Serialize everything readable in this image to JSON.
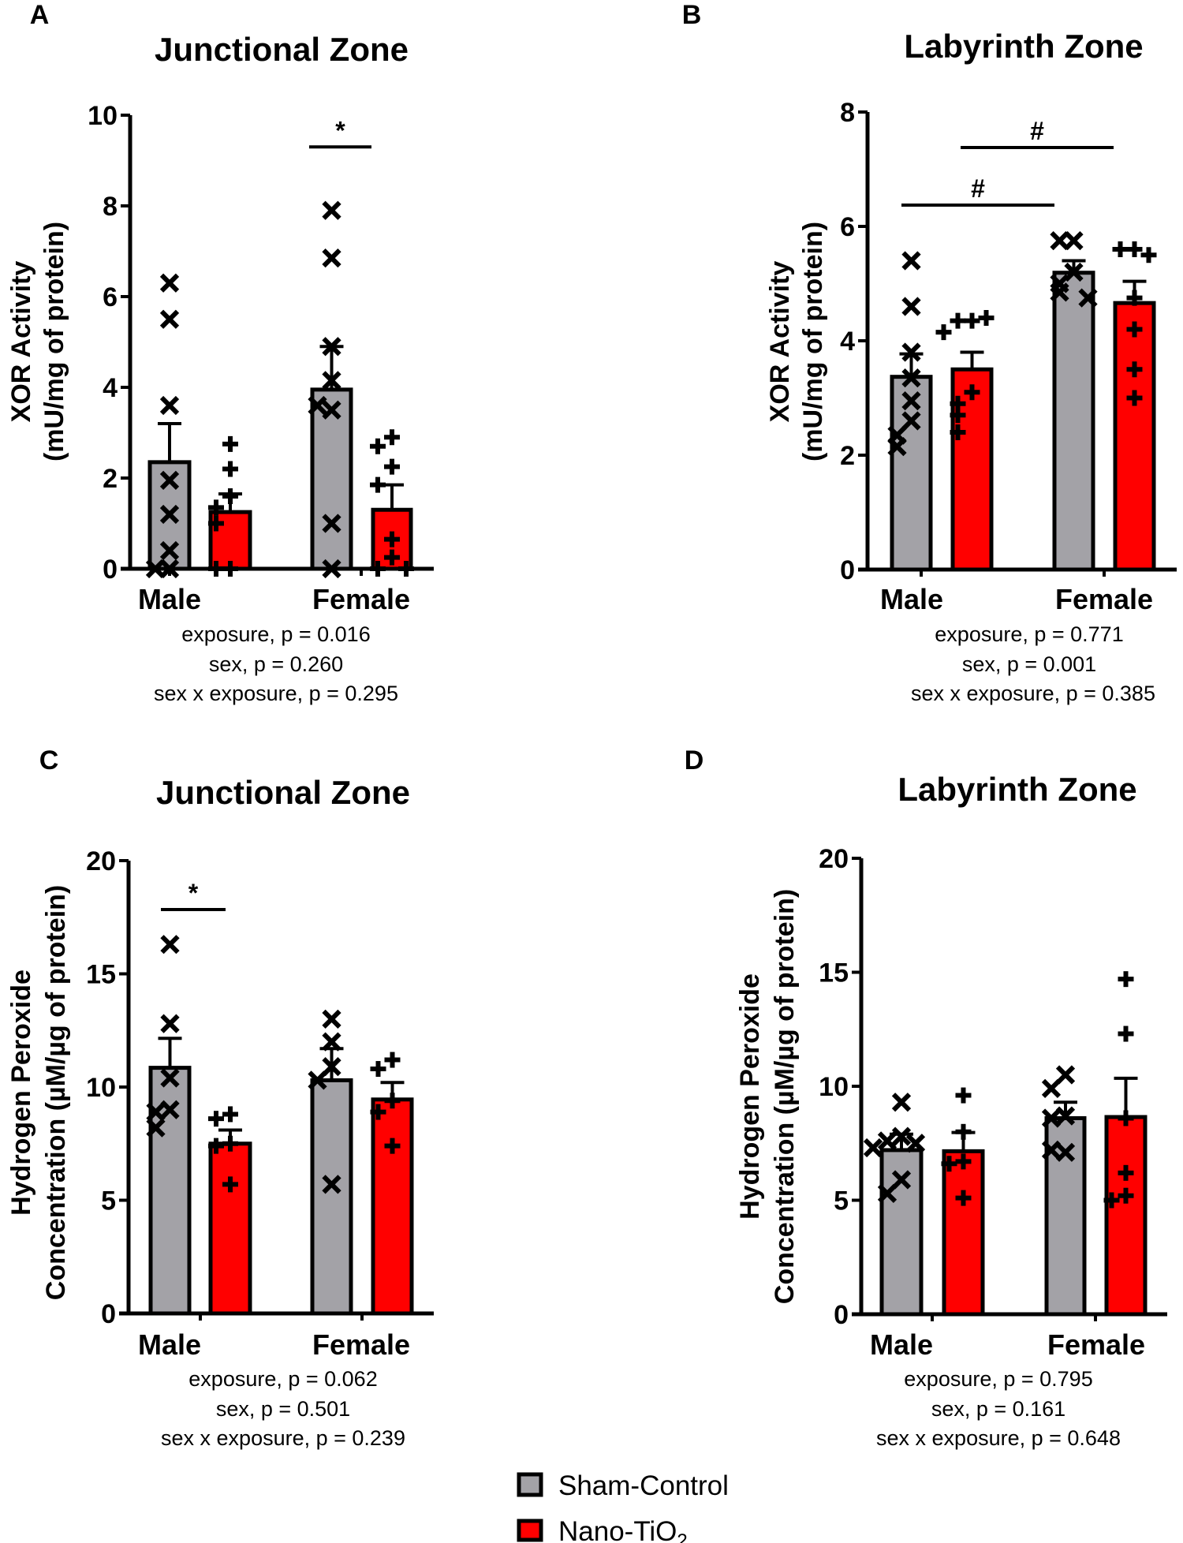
{
  "legend": {
    "items": [
      {
        "label": "Sham-Control",
        "color": "#a3a2a7"
      },
      {
        "label": "Nano-TiO",
        "subscript": "2",
        "color": "#ff0000"
      }
    ]
  },
  "chart_data": [
    {
      "panel": "A",
      "type": "bar",
      "title": "Junctional Zone",
      "ylabel": [
        "XOR Activity",
        "(mU/mg of protein)"
      ],
      "ylim": [
        0,
        10
      ],
      "yticks": [
        0,
        2,
        4,
        6,
        8,
        10
      ],
      "categories": [
        "Male",
        "Female"
      ],
      "series": [
        {
          "name": "Sham-Control",
          "marker": "x",
          "color": "#a3a2a7",
          "values": [
            2.35,
            3.95
          ],
          "sem_upper": [
            3.2,
            4.9
          ],
          "points": [
            [
              6.3,
              5.5,
              3.6,
              1.95,
              1.2,
              0.4,
              0,
              0
            ],
            [
              7.9,
              6.85,
              4.9,
              4.15,
              3.5,
              3.6,
              1.0,
              0
            ]
          ]
        },
        {
          "name": "Nano-TiO2",
          "marker": "+",
          "color": "#ff0000",
          "values": [
            1.25,
            1.3
          ],
          "sem_upper": [
            1.65,
            1.85
          ],
          "points": [
            [
              2.75,
              2.2,
              1.6,
              1.35,
              1.0,
              0,
              0
            ],
            [
              2.9,
              2.7,
              2.25,
              1.85,
              0.65,
              0.25,
              0,
              0
            ]
          ]
        }
      ],
      "significance": [
        {
          "symbol": "*",
          "from": "Female Sham-Control",
          "to": "Female Nano-TiO2",
          "y": 9.3
        }
      ],
      "stats": [
        "exposure, p = 0.016",
        "sex, p = 0.260",
        "sex x exposure,  p = 0.295"
      ]
    },
    {
      "panel": "B",
      "type": "bar",
      "title": "Labyrinth Zone",
      "ylabel": [
        "XOR Activity",
        "(mU/mg of protein)"
      ],
      "ylim": [
        0,
        8
      ],
      "yticks": [
        0,
        2,
        4,
        6,
        8
      ],
      "categories": [
        "Male",
        "Female"
      ],
      "series": [
        {
          "name": "Sham-Control",
          "marker": "x",
          "color": "#a3a2a7",
          "values": [
            3.37,
            5.19
          ],
          "sem_upper": [
            3.77,
            5.4
          ],
          "points": [
            [
              5.4,
              4.6,
              3.8,
              3.35,
              2.95,
              2.6,
              2.35,
              2.15
            ],
            [
              5.75,
              5.75,
              5.2,
              5.0,
              4.85,
              4.75
            ]
          ]
        },
        {
          "name": "Nano-TiO2",
          "marker": "+",
          "color": "#ff0000",
          "values": [
            3.5,
            4.66
          ],
          "sem_upper": [
            3.8,
            5.04
          ],
          "points": [
            [
              4.35,
              4.35,
              4.4,
              4.15,
              3.1,
              2.9,
              2.7,
              2.4
            ],
            [
              5.6,
              5.6,
              5.5,
              4.75,
              4.2,
              3.5,
              3.0
            ]
          ]
        }
      ],
      "significance": [
        {
          "symbol": "#",
          "from": "Male Sham-Control",
          "to": "Female Sham-Control",
          "y": 6.3
        },
        {
          "symbol": "#",
          "from": "Male Nano-TiO2",
          "to": "Female Nano-TiO2",
          "y": 7.3
        }
      ],
      "stats": [
        "exposure, p = 0.771",
        "sex, p = 0.001",
        "sex x exposure,  p = 0.385"
      ]
    },
    {
      "panel": "C",
      "type": "bar",
      "title": "Junctional Zone",
      "ylabel": [
        "Hydrogen Peroxide",
        "Concentration (µM/µg of protein)"
      ],
      "ylim": [
        0,
        20
      ],
      "yticks": [
        0,
        5,
        10,
        15,
        20
      ],
      "categories": [
        "Male",
        "Female"
      ],
      "series": [
        {
          "name": "Sham-Control",
          "marker": "x",
          "color": "#a3a2a7",
          "values": [
            10.85,
            10.3
          ],
          "sem_upper": [
            12.15,
            11.7
          ],
          "points": [
            [
              16.3,
              12.8,
              10.4,
              9.0,
              8.9,
              8.2
            ],
            [
              13.0,
              12.0,
              10.9,
              10.3,
              5.7
            ]
          ]
        },
        {
          "name": "Nano-TiO2",
          "marker": "+",
          "color": "#ff0000",
          "values": [
            7.5,
            9.45
          ],
          "sem_upper": [
            8.1,
            10.2
          ],
          "points": [
            [
              8.8,
              8.6,
              7.5,
              7.4,
              5.7
            ],
            [
              11.2,
              10.8,
              9.4,
              8.9,
              7.4
            ]
          ]
        }
      ],
      "significance": [
        {
          "symbol": "*",
          "from": "Male Sham-Control",
          "to": "Male Nano-TiO2",
          "y": 18.6
        }
      ],
      "stats": [
        "exposure, p = 0.062",
        "sex, p = 0.501",
        "sex x exposure,  p = 0.239"
      ]
    },
    {
      "panel": "D",
      "type": "bar",
      "title": "Labyrinth Zone",
      "ylabel": [
        "Hydrogen Peroxide",
        "Concentration (µM/µg of protein)"
      ],
      "ylim": [
        0,
        20
      ],
      "yticks": [
        0,
        5,
        10,
        15,
        20
      ],
      "categories": [
        "Male",
        "Female"
      ],
      "series": [
        {
          "name": "Sham-Control",
          "marker": "x",
          "color": "#a3a2a7",
          "values": [
            7.2,
            8.6
          ],
          "sem_upper": [
            7.9,
            9.3
          ],
          "points": [
            [
              9.3,
              7.8,
              7.6,
              7.5,
              7.3,
              5.9,
              5.3
            ],
            [
              10.5,
              9.9,
              8.7,
              8.6,
              7.1,
              7.2
            ]
          ]
        },
        {
          "name": "Nano-TiO2",
          "marker": "+",
          "color": "#ff0000",
          "values": [
            7.15,
            8.65
          ],
          "sem_upper": [
            7.97,
            10.35
          ],
          "points": [
            [
              9.6,
              8.0,
              6.7,
              6.6,
              5.1
            ],
            [
              14.7,
              12.3,
              8.6,
              6.2,
              5.2,
              5.0
            ]
          ]
        }
      ],
      "significance": [],
      "stats": [
        "exposure, p = 0.795",
        "sex, p = 0.161",
        "sex x exposure,  p = 0.648"
      ]
    }
  ]
}
